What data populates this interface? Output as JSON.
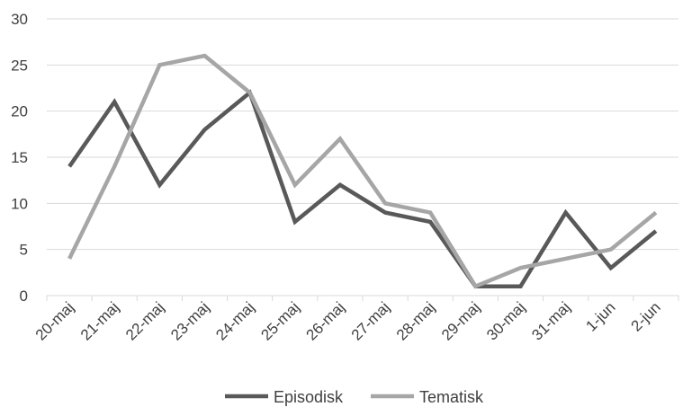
{
  "chart_data": {
    "type": "line",
    "categories": [
      "20-maj",
      "21-maj",
      "22-maj",
      "23-maj",
      "24-maj",
      "25-maj",
      "26-maj",
      "27-maj",
      "28-maj",
      "29-maj",
      "30-maj",
      "31-maj",
      "1-jun",
      "2-jun"
    ],
    "series": [
      {
        "name": "Episodisk",
        "color": "#595959",
        "values": [
          14,
          21,
          12,
          18,
          22,
          8,
          12,
          9,
          8,
          1,
          1,
          9,
          3,
          7
        ]
      },
      {
        "name": "Tematisk",
        "color": "#a6a6a6",
        "values": [
          4,
          14,
          25,
          26,
          22,
          12,
          17,
          10,
          9,
          1,
          3,
          4,
          5,
          9
        ]
      }
    ],
    "ylim": [
      0,
      30
    ],
    "yticks": [
      0,
      5,
      10,
      15,
      20,
      25,
      30
    ],
    "grid": true,
    "legend_position": "bottom",
    "gridline_color": "#d9d9d9",
    "axis_color": "#d9d9d9",
    "label_color": "#404040"
  }
}
